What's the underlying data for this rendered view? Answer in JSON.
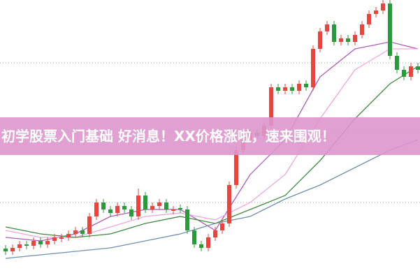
{
  "chart_data": {
    "type": "candlestick",
    "banner": "初学股票入门基础 好消息！XX价格涨啦，速来围观！",
    "xlim": [
      -0.8,
      59.3
    ],
    "ylim": [
      0,
      401
    ],
    "gridlines": [
      111,
      211,
      311
    ],
    "up_color": "#e8453c",
    "down_color": "#2a9a3a",
    "open": [
      45,
      41,
      46,
      51,
      49,
      56,
      51,
      56,
      59,
      61,
      66,
      71,
      66,
      91,
      111,
      101,
      96,
      106,
      101,
      91,
      121,
      101,
      106,
      111,
      99,
      103,
      101,
      71,
      51,
      46,
      61,
      71,
      81,
      136,
      186,
      201,
      211,
      206,
      221,
      276,
      271,
      276,
      271,
      281,
      276,
      331,
      356,
      366,
      341,
      346,
      341,
      351,
      366,
      381,
      386,
      396,
      321,
      301,
      291,
      306
    ],
    "high": [
      50,
      51,
      56,
      56,
      61,
      61,
      61,
      66,
      66,
      71,
      76,
      76,
      96,
      116,
      116,
      106,
      111,
      111,
      106,
      131,
      126,
      111,
      116,
      116,
      106,
      108,
      106,
      76,
      56,
      66,
      76,
      86,
      141,
      191,
      206,
      216,
      216,
      226,
      281,
      281,
      281,
      281,
      286,
      286,
      336,
      361,
      371,
      371,
      351,
      351,
      356,
      371,
      386,
      391,
      401,
      401,
      326,
      306,
      311,
      311
    ],
    "low": [
      36,
      36,
      41,
      44,
      44,
      46,
      46,
      51,
      54,
      56,
      61,
      61,
      61,
      86,
      96,
      91,
      91,
      96,
      86,
      86,
      96,
      96,
      101,
      96,
      94,
      96,
      66,
      46,
      41,
      41,
      56,
      66,
      76,
      131,
      181,
      196,
      201,
      201,
      216,
      266,
      266,
      266,
      266,
      271,
      271,
      326,
      351,
      336,
      336,
      336,
      336,
      346,
      361,
      376,
      381,
      316,
      296,
      286,
      286,
      296
    ],
    "close": [
      41,
      46,
      51,
      49,
      56,
      51,
      56,
      61,
      61,
      66,
      71,
      66,
      91,
      111,
      101,
      96,
      106,
      101,
      91,
      121,
      101,
      106,
      111,
      101,
      101,
      101,
      71,
      51,
      46,
      61,
      71,
      81,
      136,
      186,
      201,
      211,
      206,
      221,
      276,
      271,
      276,
      271,
      281,
      276,
      331,
      356,
      366,
      341,
      346,
      341,
      351,
      366,
      381,
      386,
      396,
      321,
      301,
      291,
      306,
      301
    ],
    "ma_x": [
      0,
      5,
      10,
      15,
      20,
      25,
      30,
      35,
      40,
      45,
      50,
      55,
      59
    ],
    "series": [
      {
        "color": "#b05ab8",
        "values": [
          61,
          56,
          66,
          91,
          101,
          101,
          71,
          151,
          201,
          291,
          331,
          341,
          331
        ]
      },
      {
        "color": "#f0a6e0",
        "values": [
          71,
          61,
          61,
          76,
          91,
          96,
          86,
          111,
          151,
          231,
          301,
          331,
          331
        ]
      },
      {
        "color": "#3e8a3e",
        "values": [
          76,
          66,
          61,
          66,
          81,
          91,
          81,
          101,
          121,
          171,
          231,
          281,
          306
        ]
      },
      {
        "color": "#6f8fb0",
        "values": [
          31,
          36,
          41,
          46,
          56,
          66,
          81,
          91,
          116,
          136,
          161,
          186,
          201
        ]
      }
    ]
  }
}
